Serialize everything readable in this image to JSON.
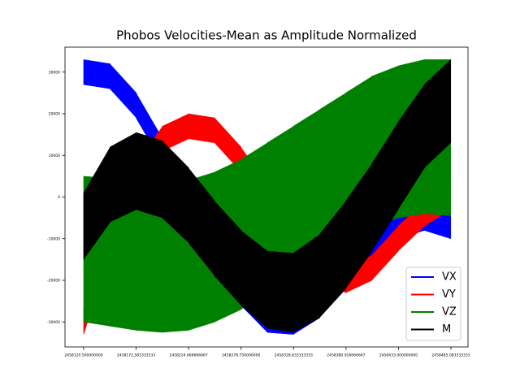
{
  "chart_data": {
    "type": "band",
    "title": "Phobos Velocities-Mean as Amplitude Normalized",
    "x": [
      2458120.5,
      2458146.5,
      2458172.5,
      2458198.5,
      2458224.5,
      2458250.5,
      2458276.5,
      2458302.5,
      2458328.5,
      2458354.5,
      2458380.5,
      2458406.5,
      2458432.5,
      2458458.5,
      2458484.5
    ],
    "series": [
      {
        "name": "VX",
        "color": "#0000ff",
        "high": [
          33000,
          32000,
          25000,
          14000,
          2000,
          -10000,
          -20000,
          -26500,
          -27000,
          -23000,
          -16000,
          -9000,
          -4000,
          -2000,
          -4000
        ],
        "low": [
          27000,
          26000,
          19000,
          8000,
          -4000,
          -16000,
          -26000,
          -32500,
          -33000,
          -29000,
          -22000,
          -15000,
          -10000,
          -8000,
          -10000
        ]
      },
      {
        "name": "VY",
        "color": "#ff0000",
        "high": [
          -27000,
          -7000,
          8000,
          17000,
          20000,
          19000,
          12000,
          3000,
          -6000,
          -14000,
          -17000,
          -14000,
          -7000,
          -1000,
          3000
        ],
        "low": [
          -33000,
          -13000,
          2000,
          11000,
          14000,
          13000,
          6000,
          -3000,
          -12000,
          -20000,
          -23000,
          -20000,
          -13000,
          -7000,
          -3000
        ]
      },
      {
        "name": "VZ",
        "color": "#008000",
        "high": [
          5000,
          4500,
          4000,
          3500,
          4000,
          6000,
          9000,
          13000,
          17000,
          21000,
          25000,
          29000,
          31500,
          33000,
          33000
        ],
        "low": [
          -30000,
          -31000,
          -32000,
          -32500,
          -32000,
          -30000,
          -27000,
          -23000,
          -19000,
          -14000,
          -10000,
          -7000,
          -5000,
          -4000,
          -4500
        ]
      },
      {
        "name": "M",
        "color": "#000000",
        "high": [
          1000,
          12000,
          15500,
          13500,
          7000,
          -1000,
          -8000,
          -13000,
          -13500,
          -9000,
          -1000,
          8000,
          18000,
          27000,
          33000
        ],
        "low": [
          -15000,
          -6000,
          -3000,
          -5000,
          -11000,
          -19000,
          -26000,
          -31500,
          -32500,
          -29000,
          -22000,
          -13000,
          -3000,
          7000,
          13000
        ]
      }
    ],
    "xlim": [
      2458102,
      2458502
    ],
    "ylim": [
      -36000,
      36000
    ],
    "xticks": [
      {
        "value": 2458120.5,
        "label": "2458120.500000000"
      },
      {
        "value": 2458172.583333333,
        "label": "2458172.583333333"
      },
      {
        "value": 2458224.666666667,
        "label": "2458224.666666667"
      },
      {
        "value": 2458276.75,
        "label": "2458276.750000000"
      },
      {
        "value": 2458328.833333333,
        "label": "2458328.833333333"
      },
      {
        "value": 2458380.916666667,
        "label": "2458380.916666667"
      },
      {
        "value": 2458433.0,
        "label": "2458433.000000000"
      },
      {
        "value": 2458485.083333333,
        "label": "2458485.083333333"
      }
    ],
    "yticks": [
      -30000,
      -20000,
      -10000,
      0,
      10000,
      20000,
      30000
    ],
    "legend": "lower right"
  }
}
